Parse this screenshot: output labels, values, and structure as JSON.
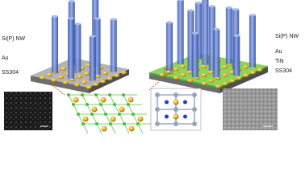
{
  "left": {
    "labels": [
      "Si(P) NW",
      "Au",
      "SS304"
    ]
  },
  "right": {
    "labels": [
      "Si(P) NW",
      "Au",
      "TiN",
      "SS304"
    ]
  }
}
